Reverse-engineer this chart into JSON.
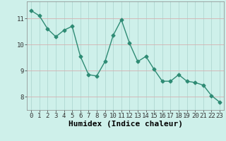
{
  "x": [
    0,
    1,
    2,
    3,
    4,
    5,
    6,
    7,
    8,
    9,
    10,
    11,
    12,
    13,
    14,
    15,
    16,
    17,
    18,
    19,
    20,
    21,
    22,
    23
  ],
  "y": [
    11.3,
    11.1,
    10.6,
    10.3,
    10.55,
    10.7,
    9.55,
    8.85,
    8.8,
    9.35,
    10.35,
    10.95,
    10.05,
    9.35,
    9.55,
    9.05,
    8.6,
    8.6,
    8.85,
    8.6,
    8.55,
    8.45,
    8.05,
    7.8
  ],
  "line_color": "#2e8b74",
  "marker": "D",
  "marker_size": 2.5,
  "bg_color": "#cef0ea",
  "vgrid_color": "#b0d8d2",
  "hgrid_color": "#d4b0b0",
  "xlabel": "Humidex (Indice chaleur)",
  "xlabel_fontsize": 8,
  "ylabel_ticks": [
    8,
    9,
    10,
    11
  ],
  "xlim": [
    -0.5,
    23.5
  ],
  "ylim": [
    7.5,
    11.65
  ],
  "tick_fontsize": 6.5,
  "line_width": 1.0
}
